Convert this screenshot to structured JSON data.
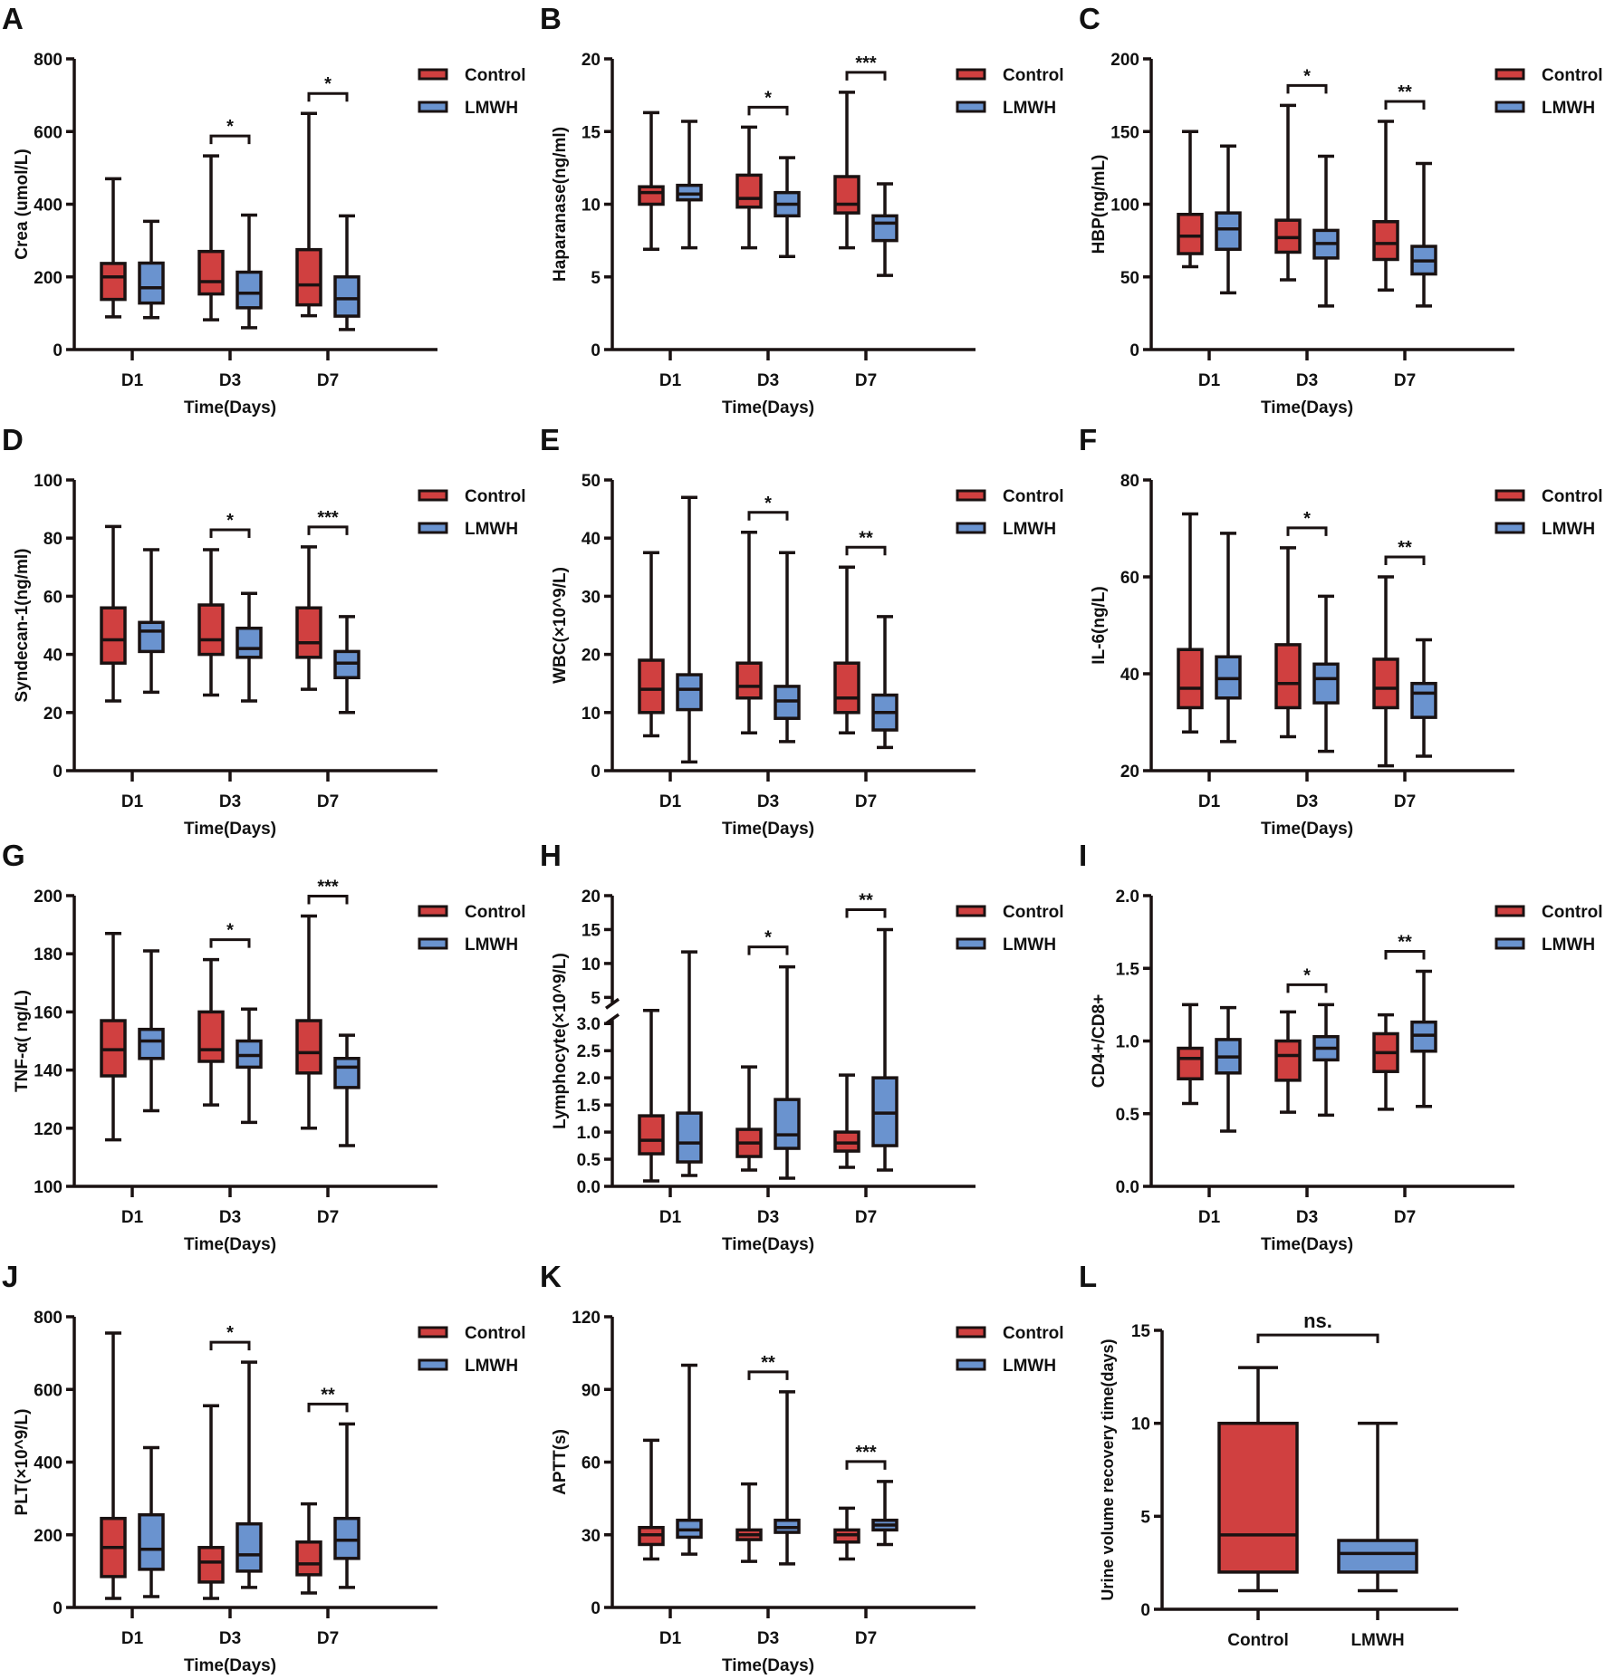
{
  "colors": {
    "Control": "#d04040",
    "LMWH": "#6a93cf",
    "axis": "#1a1212"
  },
  "legend": [
    "Control",
    "LMWH"
  ],
  "chart_data": [
    {
      "panel": "A",
      "type": "box",
      "ylabel": "Crea (umol/L)",
      "xlabel": "Time(Days)",
      "categories": [
        "D1",
        "D3",
        "D7"
      ],
      "ylim": [
        0,
        800
      ],
      "yticks": [
        0,
        200,
        400,
        600,
        800
      ],
      "series": [
        {
          "name": "Control",
          "stats": [
            [
              90,
              138,
              200,
              237,
              470
            ],
            [
              82,
              153,
              187,
              270,
              533
            ],
            [
              93,
              123,
              178,
              275,
              650
            ]
          ]
        },
        {
          "name": "LMWH",
          "stats": [
            [
              88,
              128,
              170,
              238,
              353
            ],
            [
              60,
              115,
              155,
              213,
              370
            ],
            [
              55,
              92,
              140,
              200,
              368
            ]
          ]
        }
      ],
      "significance": [
        "",
        "*",
        "*"
      ]
    },
    {
      "panel": "B",
      "type": "box",
      "ylabel": "Haparanase(ng/ml)",
      "xlabel": "Time(Days)",
      "categories": [
        "D1",
        "D3",
        "D7"
      ],
      "ylim": [
        0,
        20
      ],
      "yticks": [
        0,
        5,
        10,
        15,
        20
      ],
      "series": [
        {
          "name": "Control",
          "stats": [
            [
              6.9,
              10,
              10.8,
              11.2,
              16.3
            ],
            [
              7,
              9.8,
              10.4,
              12,
              15.3
            ],
            [
              7,
              9.4,
              10,
              11.9,
              17.7
            ]
          ]
        },
        {
          "name": "LMWH",
          "stats": [
            [
              7,
              10.3,
              10.7,
              11.3,
              15.7
            ],
            [
              6.4,
              9.2,
              10,
              10.8,
              13.2
            ],
            [
              5.1,
              7.5,
              8.7,
              9.2,
              11.4
            ]
          ]
        }
      ],
      "significance": [
        "",
        "*",
        "***"
      ]
    },
    {
      "panel": "C",
      "type": "box",
      "ylabel": "HBP(ng/mL)",
      "xlabel": "Time(Days)",
      "categories": [
        "D1",
        "D3",
        "D7"
      ],
      "ylim": [
        0,
        200
      ],
      "yticks": [
        0,
        50,
        100,
        150,
        200
      ],
      "series": [
        {
          "name": "Control",
          "stats": [
            [
              57,
              66,
              78,
              93,
              150
            ],
            [
              48,
              67,
              77,
              89,
              168
            ],
            [
              41,
              62,
              73,
              88,
              157
            ]
          ]
        },
        {
          "name": "LMWH",
          "stats": [
            [
              39,
              69,
              83,
              94,
              140
            ],
            [
              30,
              63,
              73,
              82,
              133
            ],
            [
              30,
              52,
              61,
              71,
              128
            ]
          ]
        }
      ],
      "significance": [
        "",
        "*",
        "**"
      ]
    },
    {
      "panel": "D",
      "type": "box",
      "ylabel": "Syndecan-1(ng/ml)",
      "xlabel": "Time(Days)",
      "categories": [
        "D1",
        "D3",
        "D7"
      ],
      "ylim": [
        0,
        100
      ],
      "yticks": [
        0,
        20,
        40,
        60,
        80,
        100
      ],
      "series": [
        {
          "name": "Control",
          "stats": [
            [
              24,
              37,
              45,
              56,
              84
            ],
            [
              26,
              40,
              45,
              57,
              76
            ],
            [
              28,
              39,
              44,
              56,
              77
            ]
          ]
        },
        {
          "name": "LMWH",
          "stats": [
            [
              27,
              41,
              48,
              51,
              76
            ],
            [
              24,
              39,
              42,
              49,
              61
            ],
            [
              20,
              32,
              37,
              41,
              53
            ]
          ]
        }
      ],
      "significance": [
        "",
        "*",
        "***"
      ]
    },
    {
      "panel": "E",
      "type": "box",
      "ylabel": "WBC(×10^9/L)",
      "xlabel": "Time(Days)",
      "categories": [
        "D1",
        "D3",
        "D7"
      ],
      "ylim": [
        0,
        50
      ],
      "yticks": [
        0,
        10,
        20,
        30,
        40,
        50
      ],
      "series": [
        {
          "name": "Control",
          "stats": [
            [
              6,
              10,
              14,
              19,
              37.5
            ],
            [
              6.5,
              12.5,
              14.5,
              18.5,
              41
            ],
            [
              6.5,
              10,
              12.5,
              18.5,
              35
            ]
          ]
        },
        {
          "name": "LMWH",
          "stats": [
            [
              1.5,
              10.5,
              14,
              16.5,
              47
            ],
            [
              5,
              9,
              12,
              14.5,
              37.5
            ],
            [
              4,
              7,
              10,
              13,
              26.5
            ]
          ]
        }
      ],
      "significance": [
        "",
        "*",
        "**"
      ]
    },
    {
      "panel": "F",
      "type": "box",
      "ylabel": "IL-6(ng/L)",
      "xlabel": "Time(Days)",
      "categories": [
        "D1",
        "D3",
        "D7"
      ],
      "ylim": [
        20,
        80
      ],
      "yticks": [
        20,
        40,
        60,
        80
      ],
      "series": [
        {
          "name": "Control",
          "stats": [
            [
              28,
              33,
              37,
              45,
              73
            ],
            [
              27,
              33,
              38,
              46,
              66
            ],
            [
              21,
              33,
              37,
              43,
              60
            ]
          ]
        },
        {
          "name": "LMWH",
          "stats": [
            [
              26,
              35,
              39,
              43.5,
              69
            ],
            [
              24,
              34,
              39,
              42,
              56
            ],
            [
              23,
              31,
              36,
              38,
              47
            ]
          ]
        }
      ],
      "significance": [
        "",
        "*",
        "**"
      ]
    },
    {
      "panel": "G",
      "type": "box",
      "ylabel": "TNF-α( ng/L)",
      "xlabel": "Time(Days)",
      "categories": [
        "D1",
        "D3",
        "D7"
      ],
      "ylim": [
        100,
        200
      ],
      "yticks": [
        100,
        120,
        140,
        160,
        180,
        200
      ],
      "series": [
        {
          "name": "Control",
          "stats": [
            [
              116,
              138,
              147,
              157,
              187
            ],
            [
              128,
              143,
              147,
              160,
              178
            ],
            [
              120,
              139,
              146,
              157,
              193
            ]
          ]
        },
        {
          "name": "LMWH",
          "stats": [
            [
              126,
              144,
              150,
              154,
              181
            ],
            [
              122,
              141,
              145,
              150,
              161
            ],
            [
              114,
              134,
              141,
              144,
              152
            ]
          ]
        }
      ],
      "significance": [
        "",
        "*",
        "***"
      ]
    },
    {
      "panel": "H",
      "type": "box",
      "ylabel": "Lymphocyte(×10^9/L)",
      "xlabel": "Time(Days)",
      "categories": [
        "D1",
        "D3",
        "D7"
      ],
      "ylim": [
        0,
        20
      ],
      "axis_break": [
        3,
        5
      ],
      "yticks": [
        0,
        0.5,
        1.0,
        1.5,
        2.0,
        2.5,
        3.0,
        5,
        10,
        15,
        20
      ],
      "ytick_labels": [
        "0.0",
        "0.5",
        "1.0",
        "1.5",
        "2.0",
        "2.5",
        "3.0",
        "5",
        "10",
        "15",
        "20"
      ],
      "series": [
        {
          "name": "Control",
          "stats": [
            [
              0.1,
              0.6,
              0.85,
              1.3,
              4
            ],
            [
              0.3,
              0.55,
              0.8,
              1.05,
              2.2
            ],
            [
              0.35,
              0.65,
              0.8,
              1.0,
              2.05
            ]
          ]
        },
        {
          "name": "LMWH",
          "stats": [
            [
              0.2,
              0.45,
              0.8,
              1.35,
              11.7
            ],
            [
              0.15,
              0.7,
              0.95,
              1.6,
              9.5
            ],
            [
              0.3,
              0.75,
              1.35,
              2.0,
              15
            ]
          ]
        }
      ],
      "significance": [
        "",
        "*",
        "**"
      ]
    },
    {
      "panel": "I",
      "type": "box",
      "ylabel": "CD4+/CD8+",
      "xlabel": "Time(Days)",
      "categories": [
        "D1",
        "D3",
        "D7"
      ],
      "ylim": [
        0,
        2
      ],
      "yticks": [
        0,
        0.5,
        1,
        1.5,
        2
      ],
      "ytick_labels": [
        "0.0",
        "0.5",
        "1.0",
        "1.5",
        "2.0"
      ],
      "series": [
        {
          "name": "Control",
          "stats": [
            [
              0.57,
              0.74,
              0.88,
              0.95,
              1.25
            ],
            [
              0.51,
              0.73,
              0.9,
              1.0,
              1.2
            ],
            [
              0.53,
              0.79,
              0.92,
              1.05,
              1.18
            ]
          ]
        },
        {
          "name": "LMWH",
          "stats": [
            [
              0.38,
              0.78,
              0.89,
              1.01,
              1.23
            ],
            [
              0.49,
              0.87,
              0.95,
              1.03,
              1.25
            ],
            [
              0.55,
              0.93,
              1.04,
              1.13,
              1.48
            ]
          ]
        }
      ],
      "significance": [
        "",
        "*",
        "**"
      ]
    },
    {
      "panel": "J",
      "type": "box",
      "ylabel": "PLT(×10^9/L)",
      "xlabel": "Time(Days)",
      "categories": [
        "D1",
        "D3",
        "D7"
      ],
      "ylim": [
        0,
        800
      ],
      "yticks": [
        0,
        200,
        400,
        600,
        800
      ],
      "series": [
        {
          "name": "Control",
          "stats": [
            [
              25,
              85,
              165,
              245,
              755
            ],
            [
              25,
              70,
              125,
              165,
              555
            ],
            [
              40,
              90,
              120,
              180,
              285
            ]
          ]
        },
        {
          "name": "LMWH",
          "stats": [
            [
              30,
              105,
              160,
              255,
              440
            ],
            [
              55,
              100,
              145,
              230,
              675
            ],
            [
              55,
              135,
              185,
              245,
              505
            ]
          ]
        }
      ],
      "significance": [
        "",
        "*",
        "**"
      ]
    },
    {
      "panel": "K",
      "type": "box",
      "ylabel": "APTT(s)",
      "xlabel": "Time(Days)",
      "categories": [
        "D1",
        "D3",
        "D7"
      ],
      "ylim": [
        0,
        120
      ],
      "yticks": [
        0,
        30,
        60,
        90,
        120
      ],
      "series": [
        {
          "name": "Control",
          "stats": [
            [
              20,
              26,
              30,
              33,
              69
            ],
            [
              19,
              28,
              30,
              32,
              51
            ],
            [
              20,
              27,
              30,
              32,
              41
            ]
          ]
        },
        {
          "name": "LMWH",
          "stats": [
            [
              22,
              29,
              32,
              36,
              100
            ],
            [
              18,
              31,
              33,
              36,
              89
            ],
            [
              26,
              32,
              34,
              36,
              52
            ]
          ]
        }
      ],
      "significance": [
        "",
        "**",
        "***"
      ]
    },
    {
      "panel": "L",
      "type": "box",
      "ylabel": "Urine volume recovery time(days)",
      "xlabel": "",
      "categories": [
        "Control",
        "LMWH"
      ],
      "ylim": [
        0,
        15
      ],
      "yticks": [
        0,
        5,
        10,
        15
      ],
      "series": [
        {
          "name": "Control",
          "stats": [
            [
              1,
              2,
              4,
              10,
              13
            ]
          ]
        },
        {
          "name": "LMWH",
          "stats": [
            [
              1,
              2,
              3,
              3.7,
              10
            ]
          ]
        }
      ],
      "significance": [
        "ns."
      ]
    }
  ]
}
